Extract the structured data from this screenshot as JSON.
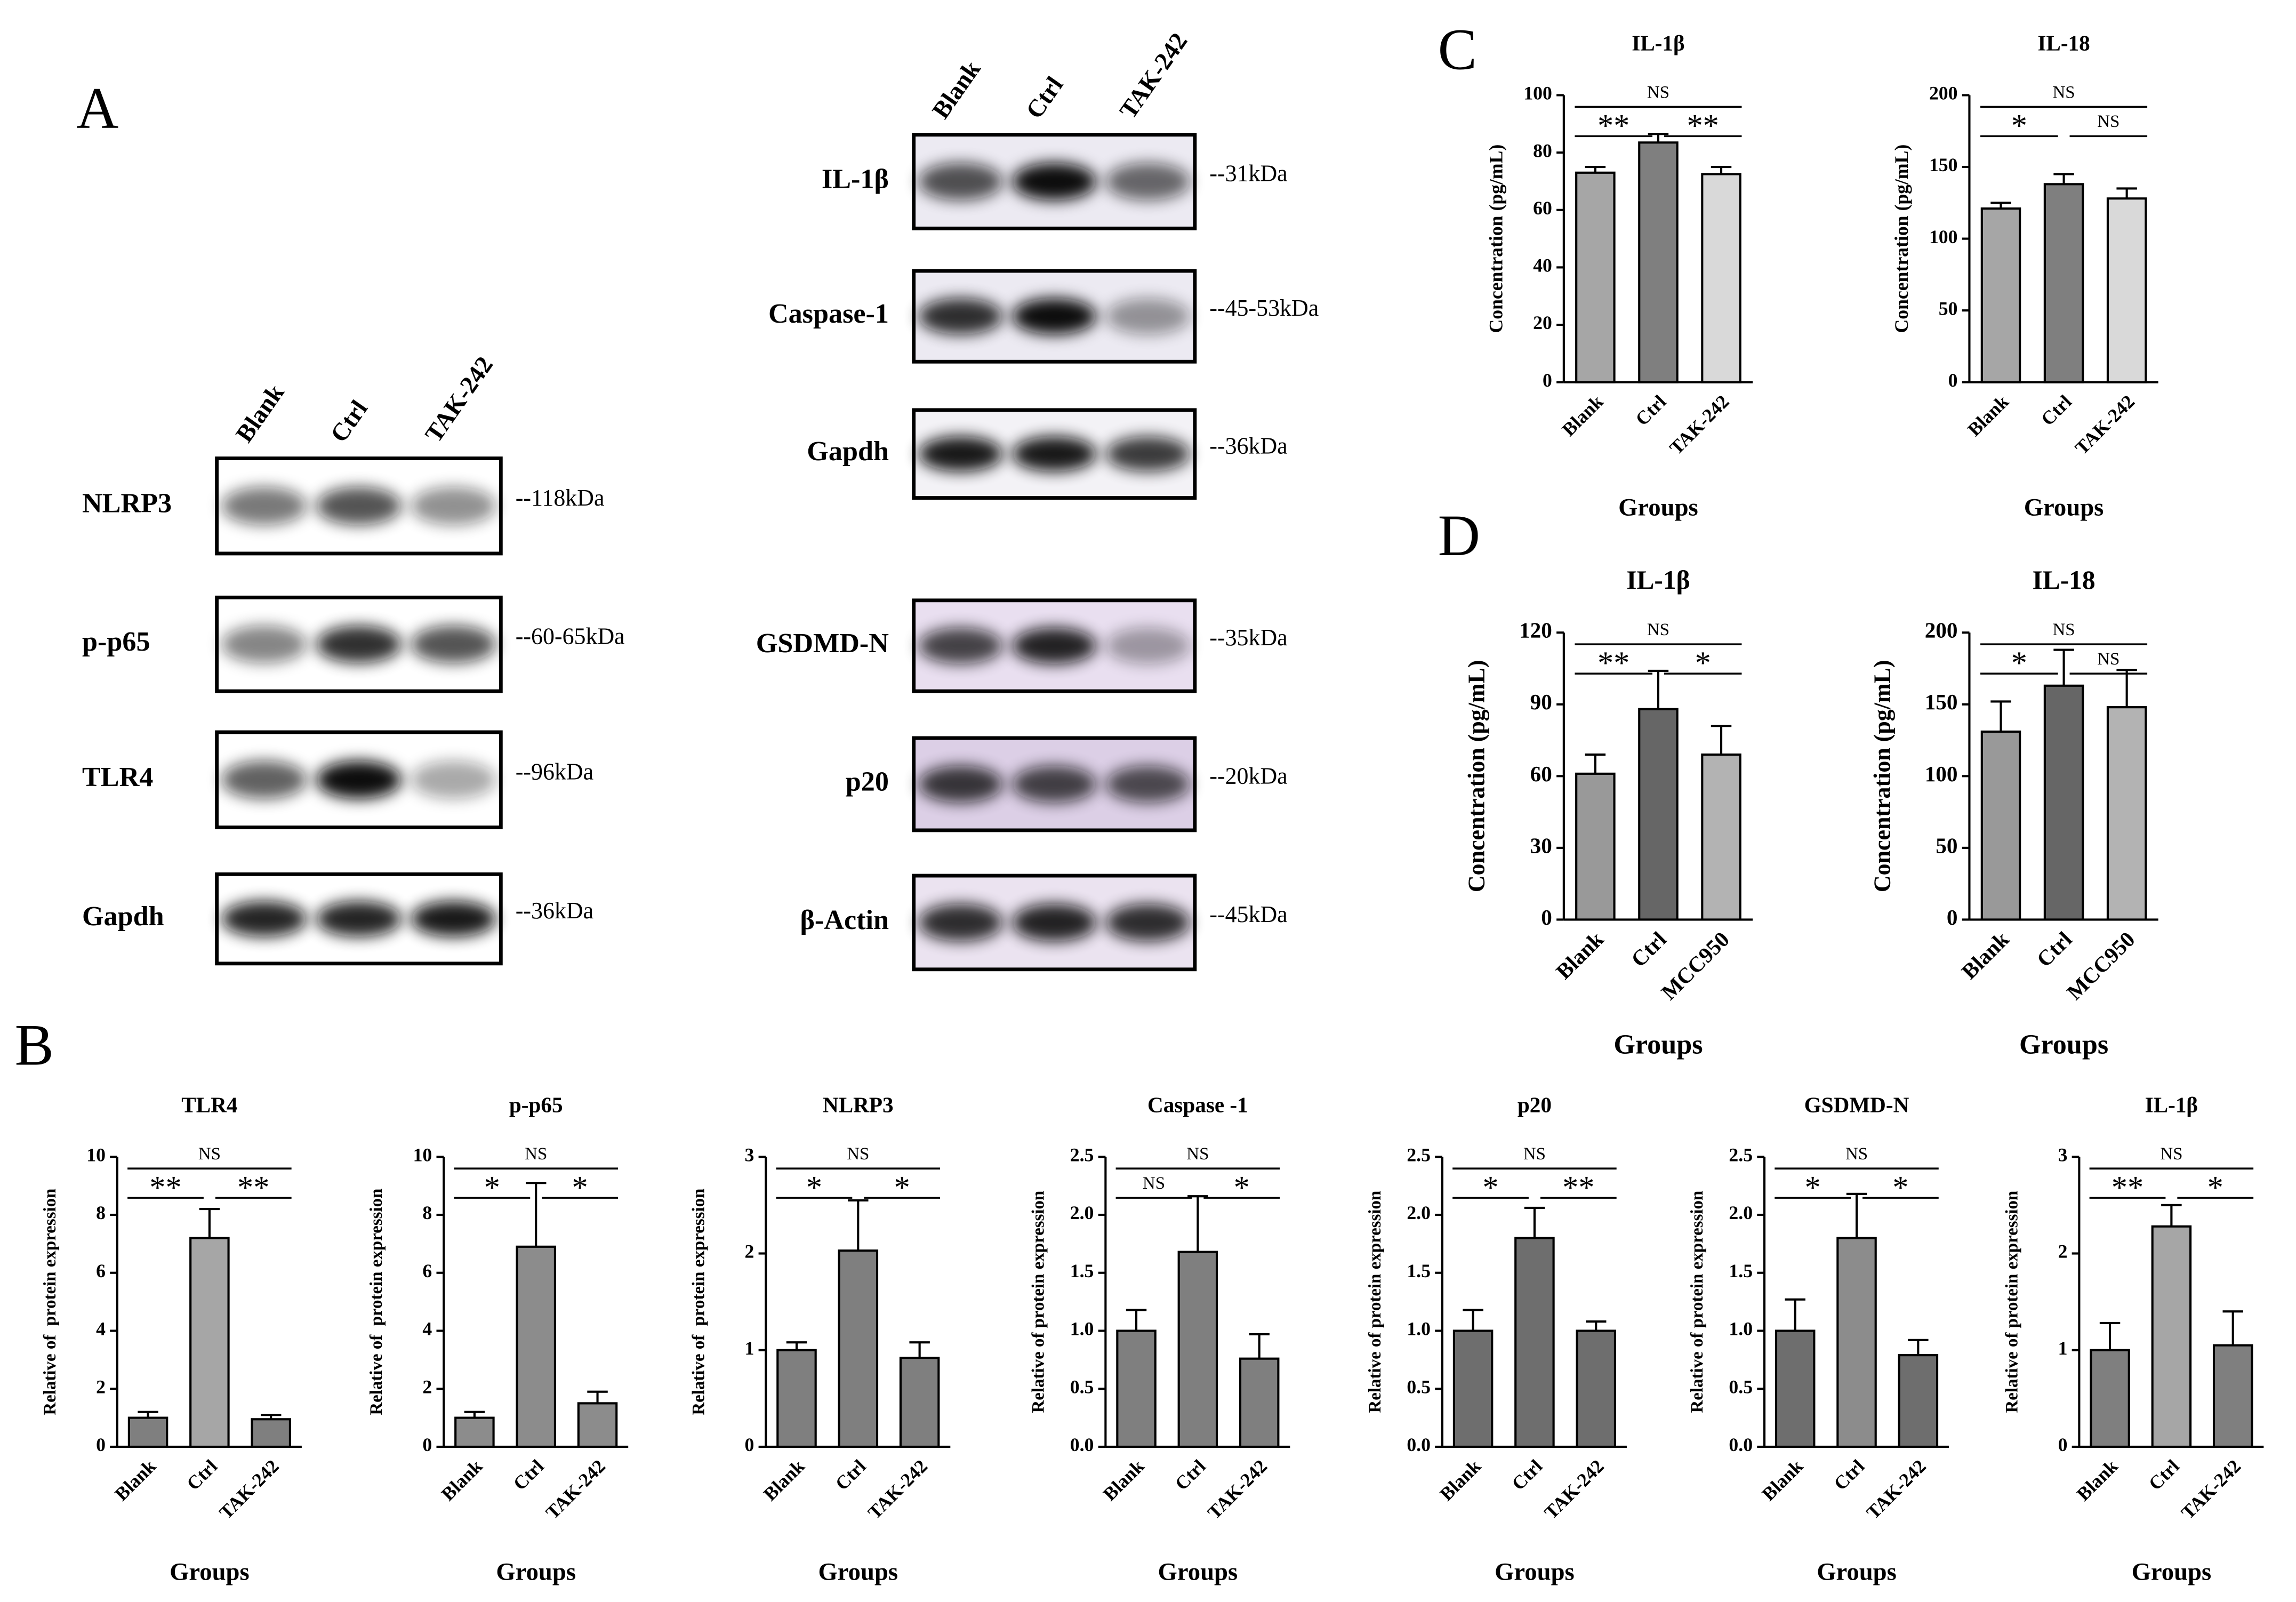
{
  "panel_labels": [
    "A",
    "B",
    "C",
    "D"
  ],
  "blots": [
    {
      "columns": [
        "Blank",
        "Ctrl",
        "TAK-242"
      ],
      "rows": [
        {
          "label": "NLRP3",
          "size": "--118kDa"
        },
        {
          "label": "p-p65",
          "size": "--60-65kDa"
        },
        {
          "label": "TLR4",
          "size": "--96kDa"
        },
        {
          "label": "Gapdh",
          "size": "--36kDa"
        }
      ]
    },
    {
      "columns": [
        "Blank",
        "Ctrl",
        "TAK-242"
      ],
      "rows": [
        {
          "label": "IL-1β",
          "size": "--31kDa"
        },
        {
          "label": "Caspase-1",
          "size": "--45-53kDa"
        },
        {
          "label": "Gapdh",
          "size": "--36kDa"
        },
        {
          "label": "GSDMD-N",
          "size": "--35kDa"
        },
        {
          "label": "p20",
          "size": "--20kDa"
        },
        {
          "label": "β-Actin",
          "size": "--45kDa"
        }
      ]
    }
  ],
  "chart_data": [
    {
      "type": "bar",
      "title": "TLR4",
      "ylabel": "Relative of  protein expression",
      "xlabel": "Groups",
      "categories": [
        "Blank",
        "Ctrl",
        "TAK-242"
      ],
      "values": [
        1.0,
        7.2,
        0.95
      ],
      "errors": [
        0.2,
        1.0,
        0.15
      ],
      "colors": [
        "#7f7f7f",
        "#a6a6a6",
        "#7f7f7f"
      ],
      "ylim": [
        0,
        10
      ],
      "yticks": [
        0,
        2,
        4,
        6,
        8,
        10
      ],
      "annotations": [
        {
          "text": "NS",
          "pair": [
            "Blank",
            "TAK-242"
          ]
        },
        {
          "text": "**",
          "pair": [
            "Blank",
            "Ctrl"
          ]
        },
        {
          "text": "**",
          "pair": [
            "Ctrl",
            "TAK-242"
          ]
        }
      ]
    },
    {
      "type": "bar",
      "title": "p-p65",
      "ylabel": "Relative of  protein expression",
      "xlabel": "Groups",
      "categories": [
        "Blank",
        "Ctrl",
        "TAK-242"
      ],
      "values": [
        1.0,
        6.9,
        1.5
      ],
      "errors": [
        0.2,
        2.2,
        0.4
      ],
      "colors": [
        "#8c8c8c",
        "#8c8c8c",
        "#8c8c8c"
      ],
      "ylim": [
        0,
        10
      ],
      "yticks": [
        0,
        2,
        4,
        6,
        8,
        10
      ],
      "annotations": [
        {
          "text": "NS",
          "pair": [
            "Blank",
            "TAK-242"
          ]
        },
        {
          "text": "*",
          "pair": [
            "Blank",
            "Ctrl"
          ]
        },
        {
          "text": "*",
          "pair": [
            "Ctrl",
            "TAK-242"
          ]
        }
      ]
    },
    {
      "type": "bar",
      "title": "NLRP3",
      "ylabel": "Relative of  protein expression",
      "xlabel": "Groups",
      "categories": [
        "Blank",
        "Ctrl",
        "TAK-242"
      ],
      "values": [
        1.0,
        2.03,
        0.92
      ],
      "errors": [
        0.08,
        0.52,
        0.16
      ],
      "colors": [
        "#7f7f7f",
        "#7f7f7f",
        "#7f7f7f"
      ],
      "ylim": [
        0,
        3
      ],
      "yticks": [
        0,
        1,
        2,
        3
      ],
      "annotations": [
        {
          "text": "NS",
          "pair": [
            "Blank",
            "TAK-242"
          ]
        },
        {
          "text": "*",
          "pair": [
            "Blank",
            "Ctrl"
          ]
        },
        {
          "text": "*",
          "pair": [
            "Ctrl",
            "TAK-242"
          ]
        }
      ]
    },
    {
      "type": "bar",
      "title": "Caspase -1",
      "ylabel": "Relative of protein expression",
      "xlabel": "Groups",
      "categories": [
        "Blank",
        "Ctrl",
        "TAK-242"
      ],
      "values": [
        1.0,
        1.68,
        0.76
      ],
      "errors": [
        0.18,
        0.48,
        0.21
      ],
      "colors": [
        "#7f7f7f",
        "#7f7f7f",
        "#7f7f7f"
      ],
      "ylim": [
        0,
        2.5
      ],
      "yticks": [
        {
          "value": 0,
          "label": "0.0"
        },
        0.5,
        {
          "value": 1,
          "label": "1.0"
        },
        1.5,
        {
          "value": 2,
          "label": "2.0"
        },
        2.5
      ],
      "annotations": [
        {
          "text": "NS",
          "pair": [
            "Blank",
            "TAK-242"
          ]
        },
        {
          "text": "NS",
          "pair": [
            "Blank",
            "Ctrl"
          ]
        },
        {
          "text": "*",
          "pair": [
            "Ctrl",
            "TAK-242"
          ]
        }
      ]
    },
    {
      "type": "bar",
      "title": "p20",
      "ylabel": "Relative of protein expression",
      "xlabel": "Groups",
      "categories": [
        "Blank",
        "Ctrl",
        "TAK-242"
      ],
      "values": [
        1.0,
        1.8,
        1.0
      ],
      "errors": [
        0.18,
        0.26,
        0.08
      ],
      "colors": [
        "#6e6e6e",
        "#6e6e6e",
        "#6e6e6e"
      ],
      "ylim": [
        0,
        2.5
      ],
      "yticks": [
        {
          "value": 0,
          "label": "0.0"
        },
        0.5,
        {
          "value": 1,
          "label": "1.0"
        },
        1.5,
        {
          "value": 2,
          "label": "2.0"
        },
        2.5
      ],
      "annotations": [
        {
          "text": "NS",
          "pair": [
            "Blank",
            "TAK-242"
          ]
        },
        {
          "text": "*",
          "pair": [
            "Blank",
            "Ctrl"
          ]
        },
        {
          "text": "**",
          "pair": [
            "Ctrl",
            "TAK-242"
          ]
        }
      ]
    },
    {
      "type": "bar",
      "title": "GSDMD-N",
      "ylabel": "Relative of protein expression",
      "xlabel": "Groups",
      "categories": [
        "Blank",
        "Ctrl",
        "TAK-242"
      ],
      "values": [
        1.0,
        1.8,
        0.79
      ],
      "errors": [
        0.27,
        0.38,
        0.13
      ],
      "colors": [
        "#6e6e6e",
        "#8c8c8c",
        "#6e6e6e"
      ],
      "ylim": [
        0,
        2.5
      ],
      "yticks": [
        {
          "value": 0,
          "label": "0.0"
        },
        0.5,
        {
          "value": 1,
          "label": "1.0"
        },
        1.5,
        {
          "value": 2,
          "label": "2.0"
        },
        2.5
      ],
      "annotations": [
        {
          "text": "NS",
          "pair": [
            "Blank",
            "TAK-242"
          ]
        },
        {
          "text": "*",
          "pair": [
            "Blank",
            "Ctrl"
          ]
        },
        {
          "text": "*",
          "pair": [
            "Ctrl",
            "TAK-242"
          ]
        }
      ]
    },
    {
      "type": "bar",
      "title": "IL-1β",
      "ylabel": "Relative of protein expression",
      "xlabel": "Groups",
      "categories": [
        "Blank",
        "Ctrl",
        "TAK-242"
      ],
      "values": [
        1.0,
        2.28,
        1.05
      ],
      "errors": [
        0.28,
        0.22,
        0.35
      ],
      "colors": [
        "#7f7f7f",
        "#a6a6a6",
        "#7f7f7f"
      ],
      "ylim": [
        0,
        3
      ],
      "yticks": [
        0,
        1,
        2,
        3
      ],
      "annotations": [
        {
          "text": "NS",
          "pair": [
            "Blank",
            "TAK-242"
          ]
        },
        {
          "text": "**",
          "pair": [
            "Blank",
            "Ctrl"
          ]
        },
        {
          "text": "*",
          "pair": [
            "Ctrl",
            "TAK-242"
          ]
        }
      ]
    },
    {
      "type": "bar",
      "title": "IL-1β",
      "ylabel": "Concentration (pg/mL)",
      "xlabel": "Groups",
      "categories": [
        "Blank",
        "Ctrl",
        "TAK-242"
      ],
      "values": [
        73,
        83.5,
        72.5
      ],
      "errors": [
        2,
        3,
        2.5
      ],
      "colors": [
        "#a6a6a6",
        "#7f7f7f",
        "#d9d9d9"
      ],
      "ylim": [
        0,
        100
      ],
      "yticks": [
        0,
        20,
        40,
        60,
        80,
        100
      ],
      "annotations": [
        {
          "text": "NS",
          "pair": [
            "Blank",
            "TAK-242"
          ]
        },
        {
          "text": "**",
          "pair": [
            "Blank",
            "Ctrl"
          ]
        },
        {
          "text": "**",
          "pair": [
            "Ctrl",
            "TAK-242"
          ]
        }
      ]
    },
    {
      "type": "bar",
      "title": "IL-18",
      "ylabel": "Concentration (pg/mL)",
      "xlabel": "Groups",
      "categories": [
        "Blank",
        "Ctrl",
        "TAK-242"
      ],
      "values": [
        121,
        138,
        128
      ],
      "errors": [
        4,
        7,
        7
      ],
      "colors": [
        "#a6a6a6",
        "#7f7f7f",
        "#d9d9d9"
      ],
      "ylim": [
        0,
        200
      ],
      "yticks": [
        0,
        50,
        100,
        150,
        200
      ],
      "annotations": [
        {
          "text": "NS",
          "pair": [
            "Blank",
            "TAK-242"
          ]
        },
        {
          "text": "*",
          "pair": [
            "Blank",
            "Ctrl"
          ]
        },
        {
          "text": "NS",
          "pair": [
            "Ctrl",
            "TAK-242"
          ]
        }
      ]
    },
    {
      "type": "bar",
      "title": "IL-1β",
      "ylabel": "Concentration (pg/mL)",
      "xlabel": "Groups",
      "categories": [
        "Blank",
        "Ctrl",
        "MCC950"
      ],
      "values": [
        61,
        88,
        69
      ],
      "errors": [
        8,
        16,
        12
      ],
      "colors": [
        "#999999",
        "#666666",
        "#b3b3b3"
      ],
      "ylim": [
        0,
        120
      ],
      "yticks": [
        0,
        30,
        60,
        90,
        120
      ],
      "annotations": [
        {
          "text": "NS",
          "pair": [
            "Blank",
            "MCC950"
          ]
        },
        {
          "text": "**",
          "pair": [
            "Blank",
            "Ctrl"
          ]
        },
        {
          "text": "*",
          "pair": [
            "Ctrl",
            "MCC950"
          ]
        }
      ]
    },
    {
      "type": "bar",
      "title": "IL-18",
      "ylabel": "Concentration (pg/mL)",
      "xlabel": "Groups",
      "categories": [
        "Blank",
        "Ctrl",
        "MCC950"
      ],
      "values": [
        131,
        163,
        148
      ],
      "errors": [
        21,
        25,
        26
      ],
      "colors": [
        "#999999",
        "#666666",
        "#b3b3b3"
      ],
      "ylim": [
        0,
        200
      ],
      "yticks": [
        0,
        50,
        100,
        150,
        200
      ],
      "annotations": [
        {
          "text": "NS",
          "pair": [
            "Blank",
            "MCC950"
          ]
        },
        {
          "text": "*",
          "pair": [
            "Blank",
            "Ctrl"
          ]
        },
        {
          "text": "NS",
          "pair": [
            "Ctrl",
            "MCC950"
          ]
        }
      ]
    }
  ]
}
